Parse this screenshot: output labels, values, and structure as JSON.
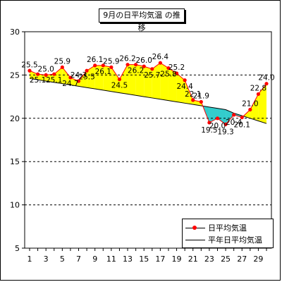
{
  "chart_data": {
    "type": "line",
    "title": "9月の日平均気温 の推移",
    "x": [
      1,
      2,
      3,
      4,
      5,
      6,
      7,
      8,
      9,
      10,
      11,
      12,
      13,
      14,
      15,
      16,
      17,
      18,
      19,
      20,
      21,
      22,
      23,
      24,
      25,
      26,
      27,
      28,
      29,
      30
    ],
    "x_tick_labels": [
      "1",
      "3",
      "5",
      "7",
      "9",
      "11",
      "13",
      "15",
      "17",
      "19",
      "21",
      "23",
      "25",
      "27",
      "29"
    ],
    "ylim": [
      5,
      30
    ],
    "y_ticks": [
      5,
      10,
      15,
      20,
      25,
      30
    ],
    "grid": "horizontal dashed",
    "legend_position": "bottom-right",
    "series": [
      {
        "name": "日平均気温",
        "color": "#ff0000",
        "values": [
          25.5,
          25.1,
          25.0,
          25.1,
          25.9,
          24.7,
          24.3,
          25.5,
          26.1,
          26.1,
          25.9,
          24.5,
          26.2,
          26.2,
          26.0,
          25.7,
          26.4,
          25.8,
          25.2,
          24.4,
          22.1,
          21.9,
          19.5,
          20.0,
          19.3,
          20.4,
          20.1,
          21.0,
          22.8,
          24.0
        ],
        "data_labels": [
          "25.5",
          "25.1",
          "25.0",
          "25.1",
          "25.9",
          "24.7",
          "24.3",
          "25.5",
          "26.1",
          "26.1",
          "25.9",
          "24.5",
          "26.2",
          "26.2",
          "26.0",
          "25.7",
          "26.4",
          "25.8",
          "25.2",
          "24.4",
          "22.1",
          "21.9",
          "19.5",
          "20.0",
          "19.3",
          "20.4",
          "20.1",
          "21.0",
          "22.8",
          "24.0"
        ]
      },
      {
        "name": "平年日平均気温",
        "color": "#000000",
        "values": [
          24.6,
          24.45,
          24.3,
          24.15,
          24.0,
          23.85,
          23.7,
          23.55,
          23.4,
          23.25,
          23.1,
          22.95,
          22.8,
          22.65,
          22.5,
          22.35,
          22.2,
          22.05,
          21.9,
          21.75,
          21.6,
          21.45,
          21.3,
          21.15,
          21.0,
          20.6,
          20.3,
          20.0,
          19.7,
          19.4
        ]
      }
    ],
    "fill": {
      "above_color": "#ffff00",
      "below_color": "#33cccc"
    }
  }
}
